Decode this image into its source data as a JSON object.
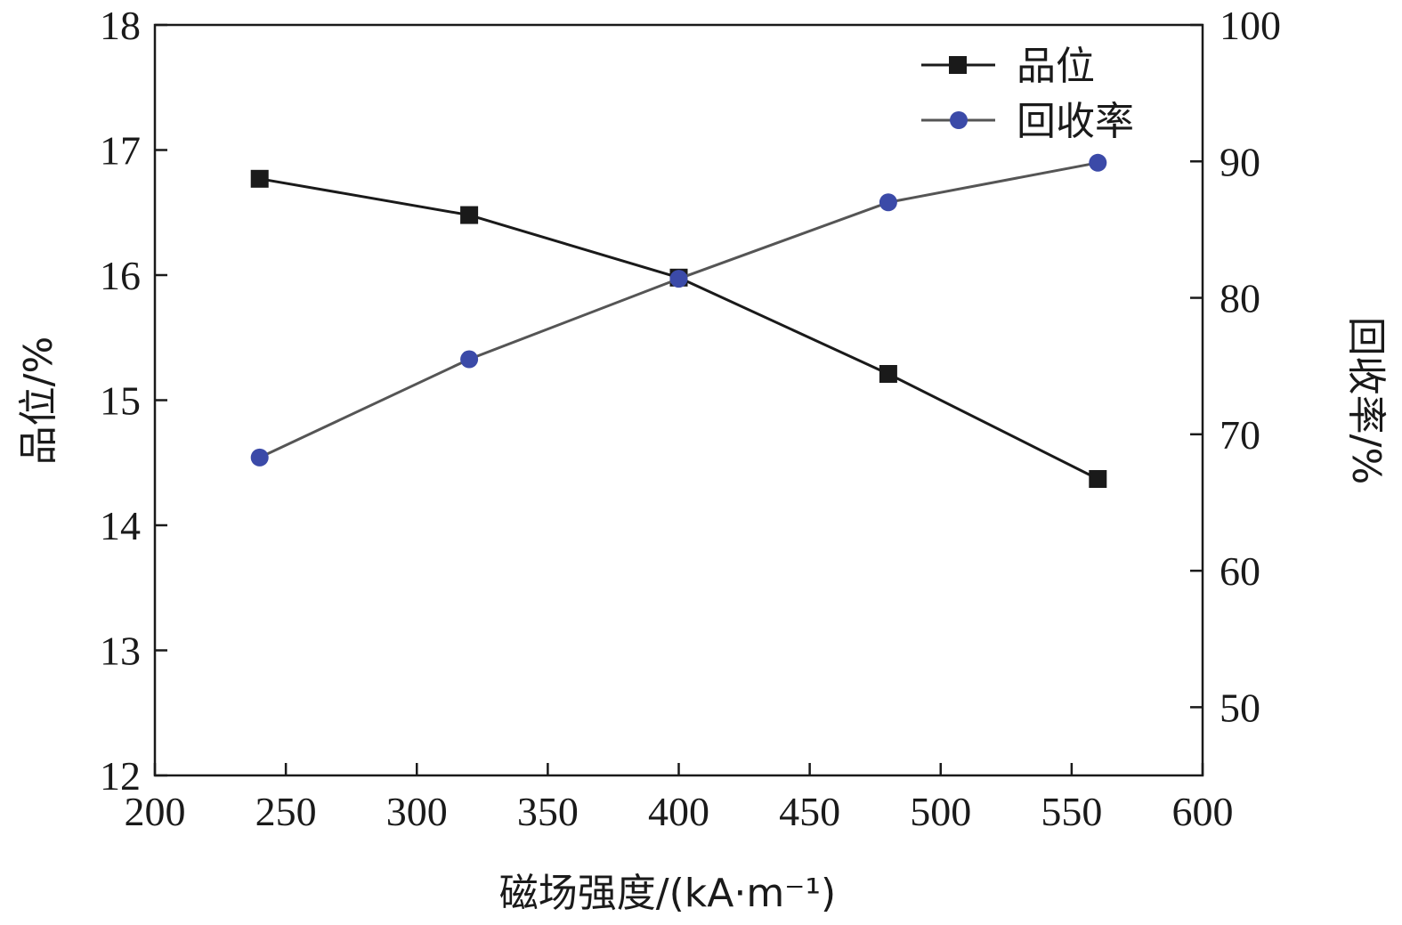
{
  "chart_data": {
    "type": "line",
    "title": "",
    "xlabel": "磁场强度/(kA·m⁻¹)",
    "ylabel_left": "品位/%",
    "ylabel_right": "回收率/%",
    "xlim": [
      200,
      600
    ],
    "ylim_left": [
      12,
      18
    ],
    "ylim_right": [
      45,
      100
    ],
    "x_ticks": [
      200,
      250,
      300,
      350,
      400,
      450,
      500,
      550,
      600
    ],
    "y_left_ticks": [
      12,
      13,
      14,
      15,
      16,
      17,
      18
    ],
    "y_right_ticks": [
      50,
      60,
      70,
      80,
      90,
      100
    ],
    "grid": false,
    "legend_position": "top-right",
    "x": [
      240,
      320,
      400,
      480,
      560
    ],
    "series": [
      {
        "name": "品位",
        "axis": "left",
        "marker": "square",
        "color": "#1a1a1a",
        "line_color": "#1a1a1a",
        "values": [
          16.77,
          16.48,
          15.98,
          15.21,
          14.37
        ]
      },
      {
        "name": "回收率",
        "axis": "right",
        "marker": "circle",
        "color": "#3b4aa8",
        "line_color": "#555555",
        "values": [
          68.3,
          75.5,
          81.4,
          87.0,
          89.9
        ]
      }
    ]
  }
}
